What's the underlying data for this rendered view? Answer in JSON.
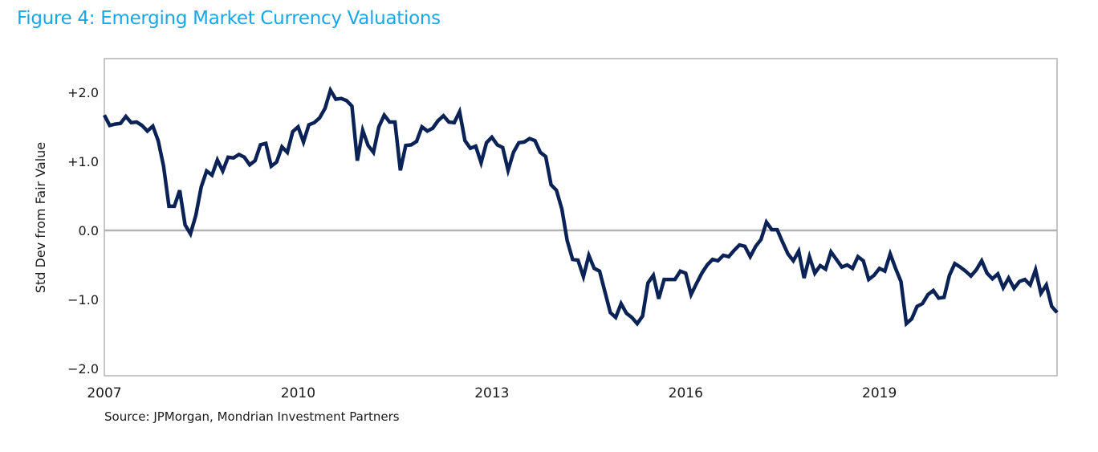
{
  "title": "Figure 4:  Emerging Market Currency Valuations",
  "source": "Source: JPMorgan, Mondrian Investment Partners",
  "colors": {
    "title": "#17a6e6",
    "line": "#0b2257",
    "zero_line": "#b3b3b3",
    "frame": "#b3b3b3"
  },
  "chart_data": {
    "type": "line",
    "title": "Figure 4:  Emerging Market Currency Valuations",
    "xlabel": "",
    "ylabel": "Std Dev from Fair Value",
    "frequency": "monthly",
    "xlim": [
      "2007-01",
      "2021-10"
    ],
    "ylim": [
      -2.5,
      2.5
    ],
    "x_ticks": [
      {
        "year": 2007,
        "label": "2007"
      },
      {
        "year": 2010,
        "label": "2010"
      },
      {
        "year": 2013,
        "label": "2013"
      },
      {
        "year": 2016,
        "label": "2016"
      },
      {
        "year": 2019,
        "label": "2019"
      }
    ],
    "y_ticks": [
      {
        "value": 2,
        "label": "+2.0"
      },
      {
        "value": 1,
        "label": "+1.0"
      },
      {
        "value": 0,
        "label": "0.0"
      },
      {
        "value": -1,
        "label": "−1.0"
      },
      {
        "value": -2,
        "label": "−2.0"
      }
    ],
    "grid": false,
    "reference_line": 0,
    "legend": "none",
    "values_by_year": {
      "2007": [
        1.67,
        1.52,
        1.54,
        1.55,
        1.65,
        1.56,
        1.57,
        1.52,
        1.44,
        1.51,
        1.3,
        0.93
      ],
      "2008": [
        0.35,
        0.35,
        0.58,
        0.08,
        -0.05,
        0.22,
        0.63,
        0.86,
        0.8,
        1.02,
        0.86,
        1.06
      ],
      "2009": [
        1.05,
        1.1,
        1.06,
        0.95,
        1.01,
        1.24,
        1.26,
        0.93,
        0.99,
        1.21,
        1.13,
        1.43
      ],
      "2010": [
        1.5,
        1.28,
        1.53,
        1.56,
        1.63,
        1.77,
        2.03,
        1.9,
        1.91,
        1.88,
        1.8,
        1.01
      ],
      "2011": [
        1.45,
        1.23,
        1.13,
        1.5,
        1.67,
        1.57,
        1.57,
        0.87,
        1.23,
        1.24,
        1.29,
        1.5
      ],
      "2012": [
        1.44,
        1.48,
        1.59,
        1.66,
        1.57,
        1.56,
        1.72,
        1.3,
        1.19,
        1.22,
        0.98,
        1.27
      ],
      "2013": [
        1.35,
        1.24,
        1.2,
        0.87,
        1.13,
        1.27,
        1.28,
        1.33,
        1.3,
        1.13,
        1.07,
        0.66
      ],
      "2014": [
        0.58,
        0.31,
        -0.15,
        -0.42,
        -0.43,
        -0.67,
        -0.36,
        -0.55,
        -0.59,
        -0.89,
        -1.19,
        -1.26
      ],
      "2015": [
        -1.06,
        -1.2,
        -1.26,
        -1.35,
        -1.24,
        -0.76,
        -0.65,
        -0.99,
        -0.71,
        -0.71,
        -0.71,
        -0.59
      ],
      "2016": [
        -0.62,
        -0.93,
        -0.77,
        -0.62,
        -0.5,
        -0.42,
        -0.44,
        -0.36,
        -0.38,
        -0.29,
        -0.21,
        -0.23
      ],
      "2017": [
        -0.38,
        -0.23,
        -0.13,
        0.12,
        0.01,
        0.01,
        -0.17,
        -0.34,
        -0.44,
        -0.3,
        -0.69,
        -0.38
      ],
      "2018": [
        -0.62,
        -0.51,
        -0.56,
        -0.31,
        -0.42,
        -0.53,
        -0.5,
        -0.55,
        -0.38,
        -0.44,
        -0.71,
        -0.65
      ],
      "2019": [
        -0.55,
        -0.59,
        -0.34,
        -0.55,
        -0.74,
        -1.35,
        -1.28,
        -1.1,
        -1.06,
        -0.93,
        -0.87,
        -0.98
      ],
      "2020": [
        -0.97,
        -0.65,
        -0.48,
        -0.53,
        -0.59,
        -0.66,
        -0.57,
        -0.44,
        -0.62,
        -0.7,
        -0.63,
        -0.83
      ],
      "2021": [
        -0.69,
        -0.84,
        -0.74,
        -0.71,
        -0.79,
        -0.57,
        -0.91,
        -0.79,
        -1.1,
        -1.19
      ]
    }
  }
}
